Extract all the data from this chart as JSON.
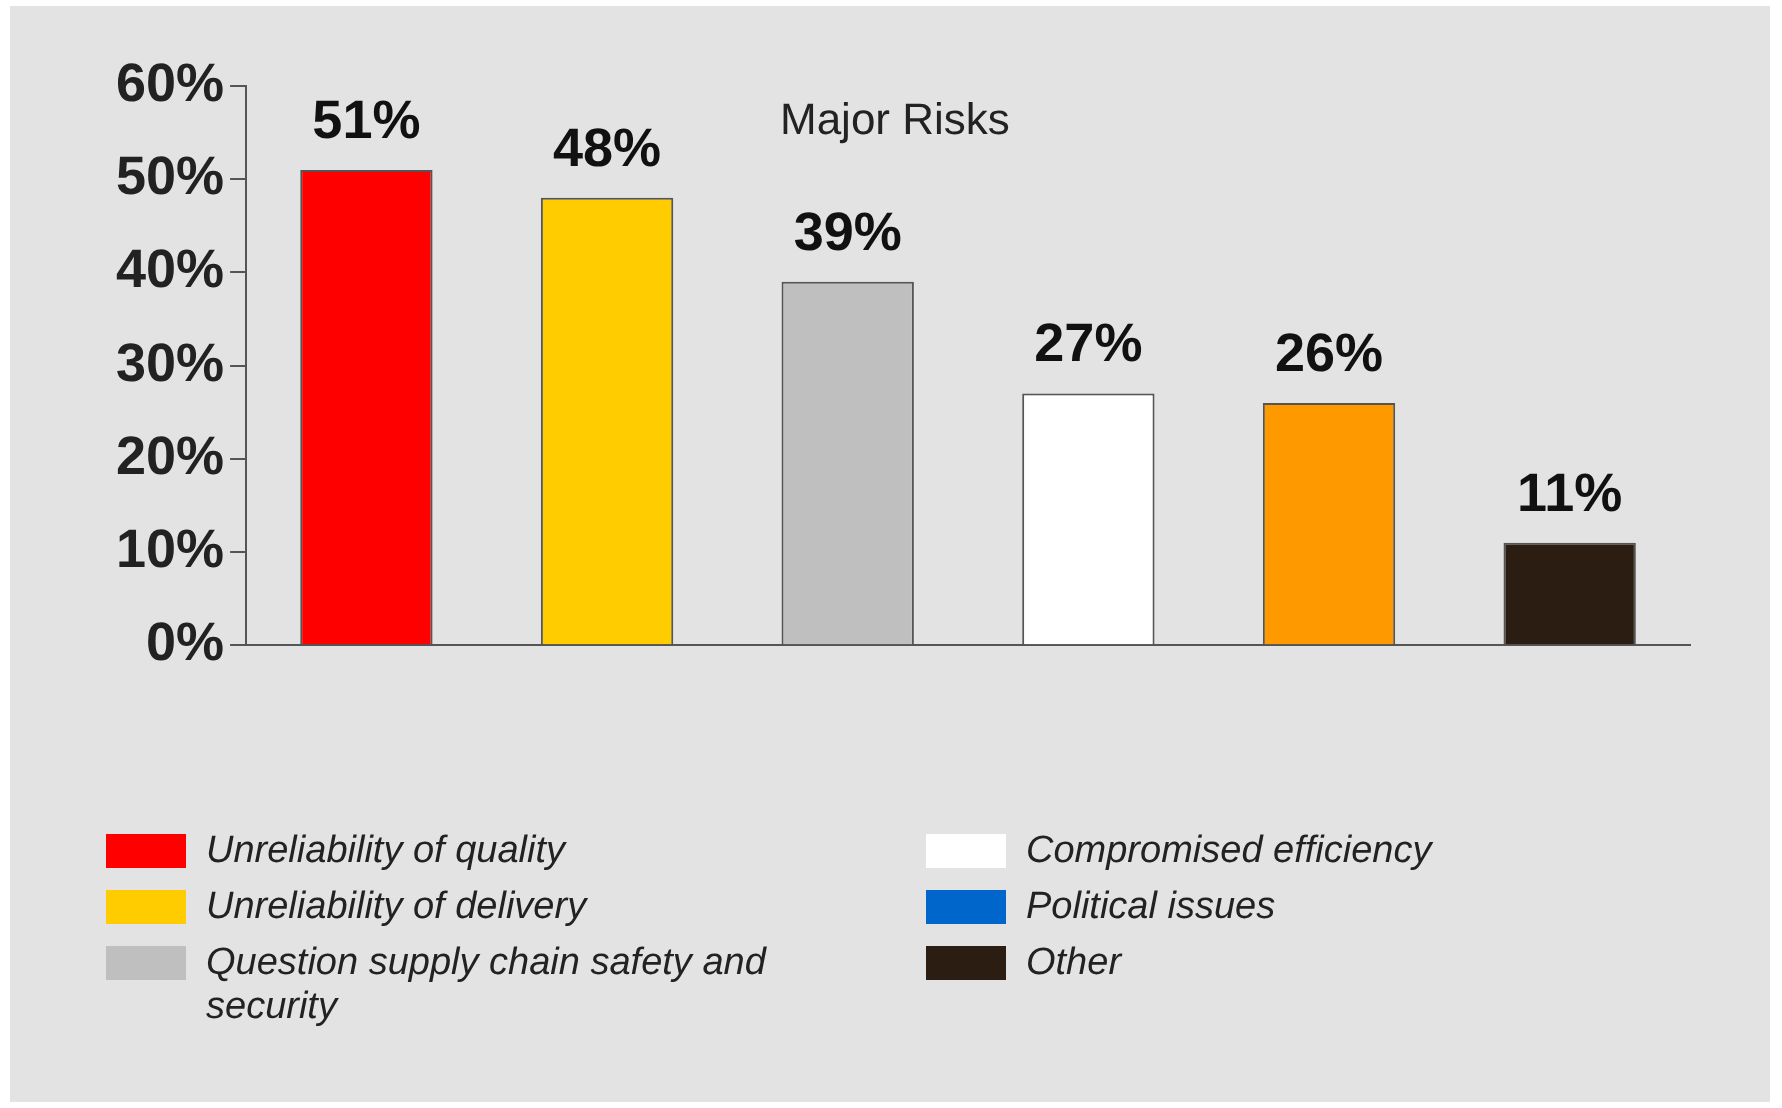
{
  "chart_data": {
    "type": "bar",
    "categories": [
      null,
      null,
      null,
      null,
      null,
      null
    ],
    "series": [
      {
        "name": "Unreliability of quality",
        "color": "#ff0000",
        "values": [
          51,
          null,
          null,
          null,
          null,
          null
        ],
        "value_labels": [
          "51%",
          null,
          null,
          null,
          null,
          null
        ]
      },
      {
        "name": "Unreliability of delivery",
        "color": "#ffcc00",
        "values": [
          null,
          48,
          null,
          null,
          null,
          null
        ],
        "value_labels": [
          null,
          "48%",
          null,
          null,
          null,
          null
        ]
      },
      {
        "name": "Question supply chain safety and security",
        "color": "#bfbfbf",
        "values": [
          null,
          null,
          39,
          null,
          null,
          null
        ],
        "value_labels": [
          null,
          null,
          "39%",
          null,
          null,
          null
        ]
      },
      {
        "name": "Compromised efficiency",
        "color": "#ffffff",
        "values": [
          null,
          null,
          null,
          27,
          null,
          null
        ],
        "value_labels": [
          null,
          null,
          null,
          "27%",
          null,
          null
        ]
      },
      {
        "color": "#ff9900",
        "values": [
          null,
          null,
          null,
          null,
          26,
          null
        ],
        "value_labels": [
          null,
          null,
          null,
          null,
          "26%",
          null
        ]
      },
      {
        "name": "Political issues",
        "color": "#0066cc",
        "values": [
          null,
          null,
          null,
          null,
          null,
          null
        ]
      },
      {
        "name": "Other",
        "color": "#2b1d12",
        "values": [
          null,
          null,
          null,
          null,
          null,
          11
        ],
        "value_labels": [
          null,
          null,
          null,
          null,
          null,
          "11%"
        ]
      }
    ],
    "ylim": [
      0,
      60
    ],
    "yticks": [
      {
        "value": 0,
        "label": "0%"
      },
      {
        "value": 10,
        "label": "10%"
      },
      {
        "value": 20,
        "label": "20%"
      },
      {
        "value": 30,
        "label": "30%"
      },
      {
        "value": 40,
        "label": "40%"
      },
      {
        "value": 50,
        "label": "50%"
      },
      {
        "value": 60,
        "label": "60%"
      }
    ],
    "annotations": [
      "Major Risks"
    ],
    "grid": false,
    "legend": "bottom"
  }
}
